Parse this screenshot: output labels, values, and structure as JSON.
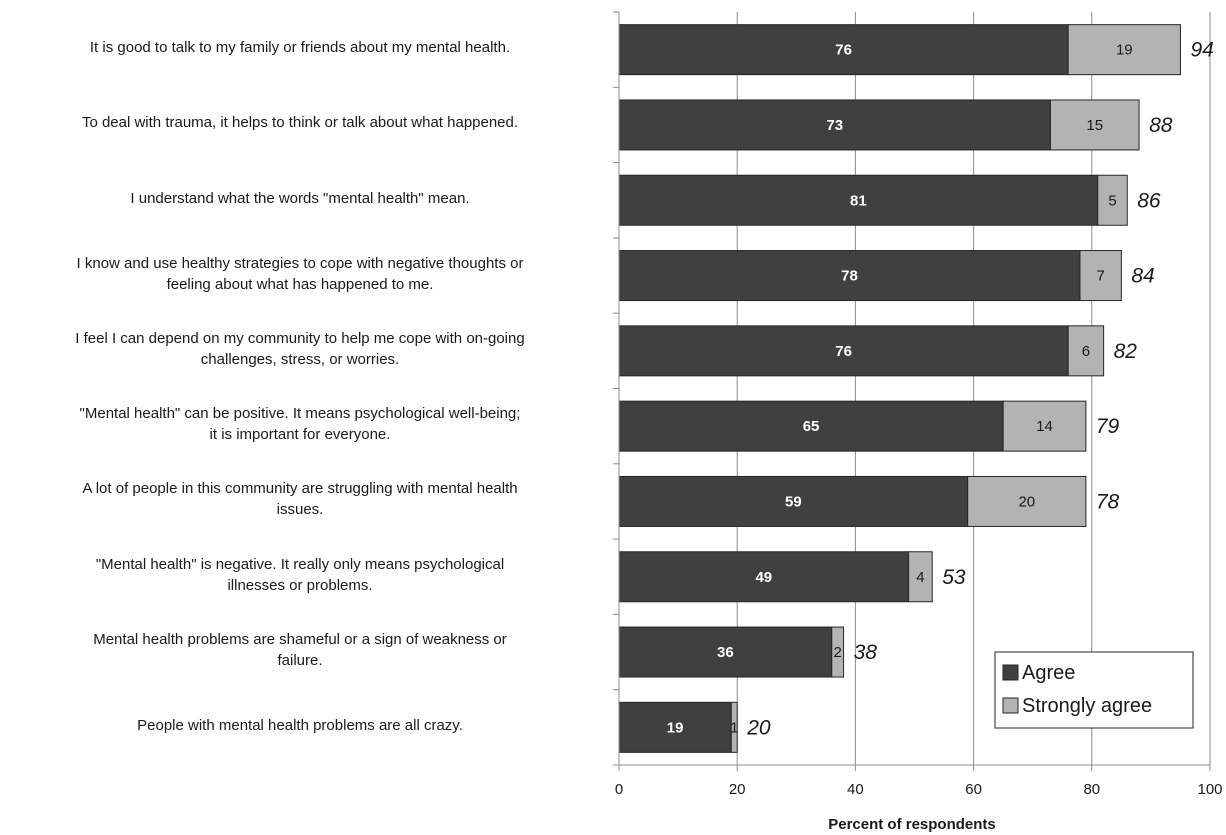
{
  "chart_data": {
    "type": "bar",
    "stacked": true,
    "orientation": "horizontal",
    "categories": [
      "It is good to talk to my family or friends about my mental health.",
      "To deal with trauma, it helps to think or talk about what happened.",
      "I understand what the words \"mental health\" mean.",
      "I know and use healthy strategies to cope with negative thoughts or feeling about what has happened to me.",
      "I feel I can depend on my community to help me cope with on-going challenges, stress, or worries.",
      "\"Mental health\" can be positive. It means psychological well-being; it is important for everyone.",
      "A lot of people in this community are struggling with mental health issues.",
      "\"Mental health\" is negative. It really only means psychological illnesses or problems.",
      "Mental health problems are shameful or a sign of weakness or failure.",
      "People with mental health problems are all crazy."
    ],
    "category_lines": [
      [
        "It is good to talk to my family or friends about my mental health."
      ],
      [
        "To deal with trauma, it helps to think or talk about what happened."
      ],
      [
        "I understand what the words \"mental health\" mean."
      ],
      [
        "I know and use healthy strategies to cope with negative thoughts or",
        "feeling about what has happened to me."
      ],
      [
        "I feel I can depend on my community to help me cope with on-going",
        "challenges, stress, or worries."
      ],
      [
        "\"Mental health\" can be positive. It means psychological well-being;",
        "it is important for everyone."
      ],
      [
        "A lot of people in this community are struggling with mental health",
        "issues."
      ],
      [
        "\"Mental health\" is negative. It really only means psychological",
        "illnesses or problems."
      ],
      [
        "Mental health problems are shameful or a sign of weakness or",
        "failure."
      ],
      [
        "People with mental health problems are all crazy."
      ]
    ],
    "series": [
      {
        "name": "Agree",
        "color": "#404040",
        "label_color": "#ffffff",
        "values": [
          76,
          73,
          81,
          78,
          76,
          65,
          59,
          49,
          36,
          19
        ]
      },
      {
        "name": "Strongly agree",
        "color": "#b3b3b3",
        "label_color": "#1a1a1a",
        "values": [
          19,
          15,
          5,
          7,
          6,
          14,
          20,
          4,
          2,
          1
        ]
      }
    ],
    "totals": [
      94,
      88,
      86,
      84,
      82,
      79,
      78,
      53,
      38,
      20
    ],
    "xlabel": "Percent of respondents",
    "xlim": [
      0,
      100
    ],
    "xticks": [
      0,
      20,
      40,
      60,
      80,
      100
    ],
    "grid": true,
    "legend_position": "bottom-right"
  }
}
